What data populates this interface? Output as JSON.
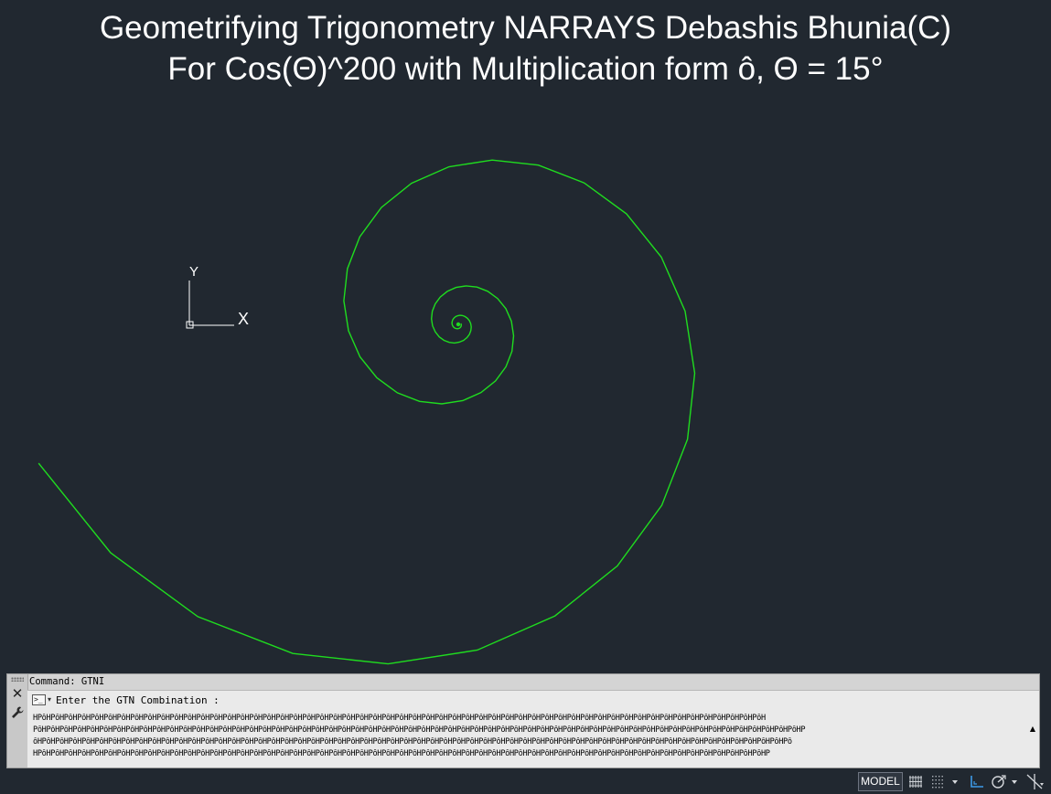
{
  "title": {
    "line1": "Geometrifying Trigonometry NARRAYS Debashis Bhunia(C)",
    "line2": "For Cos(Θ)^200 with Multiplication form ô, Θ = 15°"
  },
  "ucs": {
    "x_label": "X",
    "y_label": "Y"
  },
  "colors": {
    "background": "#212830",
    "spiral": "#1fdc1f",
    "title": "#ffffff",
    "ucs": "#ffffff"
  },
  "command_window": {
    "history": "Command: GTNI",
    "prompt": "Enter the GTN Combination :",
    "lines": [
      "HPôHPôHPôHPôHPôHPôHPôHPôHPôHPôHPôHPôHPôHPôHPôHPôHPôHPôHPôHPôHPôHPôHPôHPôHPôHPôHPôHPôHPôHPôHPôHPôHPôHPôHPôHPôHPôHPôHPôHPôHPôHPôHPôHPôHPôHPôHPôHPôHPôHPôHPôHPôHPôHPôHPôH",
      "PôHPôHPôHPôHPôHPôHPôHPôHPôHPôHPôHPôHPôHPôHPôHPôHPôHPôHPôHPôHPôHPôHPôHPôHPôHPôHPôHPôHPôHPôHPôHPôHPôHPôHPôHPôHPôHPôHPôHPôHPôHPôHPôHPôHPôHPôHPôHPôHPôHPôHPôHPôHPôHPôHPôHPôHPôHPôHP",
      "ôHPôHPôHPôHPôHPôHPôHPôHPôHPôHPôHPôHPôHPôHPôHPôHPôHPôHPôHPôHPôHPôHPôHPôHPôHPôHPôHPôHPôHPôHPôHPôHPôHPôHPôHPôHPôHPôHPôHPôHPôHPôHPôHPôHPôHPôHPôHPôHPôHPôHPôHPôHPôHPôHPôHPôHPôHPô",
      "HPôHPôHPôHPôHPôHPôHPôHPôHPôHPôHPôHPôHPôHPôHPôHPôHPôHPôHPôHPôHPôHPôHPôHPôHPôHPôHPôHPôHPôHPôHPôHPôHPôHPôHPôHPôHPôHPôHPôHPôHPôHPôHPôHPôHPôHPôHPôHPôHPôHPôHPôHPôHPôHPôHPôHP"
    ],
    "prompt_icon": "command-prompt-icon",
    "close_icon": "close-icon",
    "settings_icon": "wrench-icon"
  },
  "status_bar": {
    "model_label": "MODEL",
    "icons": [
      "grid-icon",
      "snap-grid-icon",
      "dropdown-arrow-icon",
      "ortho-icon",
      "polar-tracking-icon",
      "dropdown-arrow-icon",
      "object-snap-tracking-icon"
    ]
  },
  "spiral": {
    "theta_deg": 15,
    "exponent": 200,
    "center_marker": "origin-dot"
  }
}
